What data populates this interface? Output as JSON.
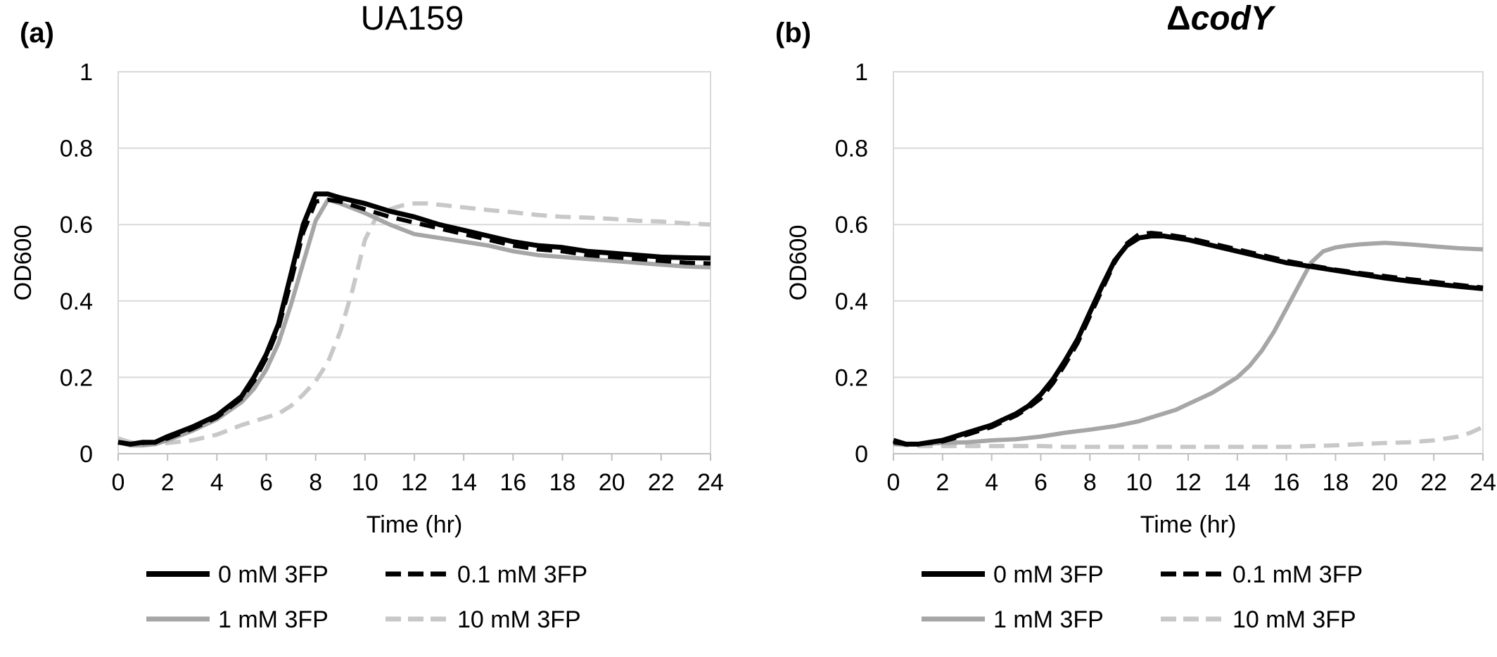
{
  "panels": [
    {
      "letter": "(a)",
      "title": "UA159",
      "title_italic": false
    },
    {
      "letter": "(b)",
      "title_prefix": "Δ",
      "title": "codY",
      "title_italic": true
    }
  ],
  "chart_data": [
    {
      "type": "line",
      "title": "UA159",
      "xlabel": "Time (hr)",
      "ylabel": "OD600",
      "xlim": [
        0,
        24
      ],
      "ylim": [
        0,
        1
      ],
      "xticks": [
        "0",
        "2",
        "4",
        "6",
        "8",
        "10",
        "12",
        "14",
        "16",
        "18",
        "20",
        "22",
        "24"
      ],
      "yticks": [
        "0",
        "0.2",
        "0.4",
        "0.6",
        "0.8",
        "1"
      ],
      "grid": true,
      "legend_position": "bottom",
      "series": [
        {
          "name": "0 mM 3FP",
          "color": "#000000",
          "dash": "solid",
          "x": [
            0,
            0.5,
            1,
            1.5,
            2,
            3,
            4,
            5,
            5.5,
            6,
            6.5,
            7,
            7.5,
            8,
            8.5,
            9,
            10,
            11,
            12,
            13,
            14,
            15,
            16,
            17,
            18,
            19,
            20,
            21,
            22,
            23,
            24
          ],
          "y": [
            0.03,
            0.025,
            0.03,
            0.03,
            0.045,
            0.07,
            0.1,
            0.15,
            0.2,
            0.26,
            0.34,
            0.47,
            0.6,
            0.68,
            0.68,
            0.67,
            0.655,
            0.635,
            0.62,
            0.6,
            0.585,
            0.57,
            0.555,
            0.545,
            0.54,
            0.53,
            0.525,
            0.52,
            0.515,
            0.513,
            0.512
          ]
        },
        {
          "name": "0.1 mM 3FP",
          "color": "#000000",
          "dash": "dashed",
          "x": [
            0,
            0.5,
            1,
            1.5,
            2,
            3,
            4,
            5,
            5.5,
            6,
            6.5,
            7,
            7.5,
            8,
            8.5,
            9,
            10,
            11,
            12,
            13,
            14,
            15,
            16,
            17,
            18,
            19,
            20,
            21,
            22,
            23,
            24
          ],
          "y": [
            0.03,
            0.025,
            0.028,
            0.03,
            0.04,
            0.065,
            0.095,
            0.145,
            0.19,
            0.25,
            0.33,
            0.45,
            0.58,
            0.66,
            0.665,
            0.66,
            0.64,
            0.62,
            0.605,
            0.59,
            0.575,
            0.56,
            0.545,
            0.535,
            0.53,
            0.52,
            0.515,
            0.51,
            0.505,
            0.5,
            0.498
          ]
        },
        {
          "name": "1 mM 3FP",
          "color": "#a6a6a6",
          "dash": "solid",
          "x": [
            0,
            0.5,
            1,
            1.5,
            2,
            3,
            4,
            5,
            5.5,
            6,
            6.5,
            7,
            7.5,
            8,
            8.5,
            9,
            10,
            11,
            12,
            13,
            14,
            15,
            16,
            17,
            18,
            19,
            20,
            21,
            22,
            23,
            24
          ],
          "y": [
            0.03,
            0.022,
            0.022,
            0.025,
            0.035,
            0.06,
            0.09,
            0.135,
            0.17,
            0.22,
            0.29,
            0.39,
            0.5,
            0.61,
            0.665,
            0.655,
            0.63,
            0.6,
            0.575,
            0.565,
            0.555,
            0.545,
            0.53,
            0.52,
            0.515,
            0.51,
            0.505,
            0.5,
            0.495,
            0.49,
            0.488
          ]
        },
        {
          "name": "10 mM 3FP",
          "color": "#c8c8c8",
          "dash": "dashed",
          "x": [
            0,
            0.5,
            1,
            1.5,
            2,
            3,
            4,
            5,
            6,
            6.5,
            7,
            7.5,
            8,
            8.5,
            9,
            9.5,
            10,
            10.5,
            11,
            11.5,
            12,
            12.5,
            13,
            14,
            15,
            16,
            17,
            18,
            19,
            20,
            21,
            22,
            23,
            24
          ],
          "y": [
            0.04,
            0.03,
            0.025,
            0.025,
            0.028,
            0.035,
            0.05,
            0.075,
            0.095,
            0.105,
            0.125,
            0.155,
            0.19,
            0.24,
            0.32,
            0.43,
            0.56,
            0.625,
            0.64,
            0.65,
            0.655,
            0.655,
            0.652,
            0.645,
            0.638,
            0.632,
            0.625,
            0.62,
            0.618,
            0.615,
            0.61,
            0.608,
            0.603,
            0.6
          ]
        }
      ]
    },
    {
      "type": "line",
      "title": "ΔcodY",
      "xlabel": "Time (hr)",
      "ylabel": "OD600",
      "xlim": [
        0,
        24
      ],
      "ylim": [
        0,
        1
      ],
      "xticks": [
        "0",
        "2",
        "4",
        "6",
        "8",
        "10",
        "12",
        "14",
        "16",
        "18",
        "20",
        "22",
        "24"
      ],
      "yticks": [
        "0",
        "0.2",
        "0.4",
        "0.6",
        "0.8",
        "1"
      ],
      "grid": true,
      "legend_position": "bottom",
      "series": [
        {
          "name": "0 mM 3FP",
          "color": "#000000",
          "dash": "solid",
          "x": [
            0,
            0.5,
            1,
            2,
            3,
            4,
            4.5,
            5,
            5.5,
            6,
            6.5,
            7,
            7.5,
            8,
            8.5,
            9,
            9.5,
            10,
            10.5,
            11,
            12,
            13,
            14,
            15,
            16,
            17,
            18,
            19,
            20,
            21,
            22,
            23,
            24
          ],
          "y": [
            0.035,
            0.025,
            0.025,
            0.035,
            0.055,
            0.075,
            0.09,
            0.105,
            0.125,
            0.155,
            0.195,
            0.245,
            0.3,
            0.37,
            0.44,
            0.505,
            0.545,
            0.565,
            0.57,
            0.57,
            0.56,
            0.545,
            0.53,
            0.515,
            0.5,
            0.49,
            0.48,
            0.47,
            0.46,
            0.452,
            0.445,
            0.438,
            0.432
          ]
        },
        {
          "name": "0.1 mM 3FP",
          "color": "#000000",
          "dash": "dashed",
          "x": [
            0,
            0.5,
            1,
            2,
            3,
            4,
            4.5,
            5,
            5.5,
            6,
            6.5,
            7,
            7.5,
            8,
            8.5,
            9,
            9.5,
            10,
            10.5,
            11,
            12,
            13,
            14,
            15,
            16,
            17,
            18,
            19,
            20,
            21,
            22,
            23,
            24
          ],
          "y": [
            0.03,
            0.025,
            0.025,
            0.032,
            0.05,
            0.07,
            0.085,
            0.1,
            0.12,
            0.145,
            0.185,
            0.235,
            0.29,
            0.36,
            0.43,
            0.5,
            0.55,
            0.575,
            0.578,
            0.575,
            0.565,
            0.55,
            0.535,
            0.52,
            0.505,
            0.493,
            0.482,
            0.473,
            0.465,
            0.457,
            0.45,
            0.442,
            0.435
          ]
        },
        {
          "name": "1 mM 3FP",
          "color": "#a6a6a6",
          "dash": "solid",
          "x": [
            0,
            1,
            2,
            3,
            4,
            5,
            6,
            7,
            8,
            9,
            10,
            10.5,
            11,
            11.5,
            12,
            12.5,
            13,
            13.5,
            14,
            14.5,
            15,
            15.5,
            16,
            16.5,
            17,
            17.5,
            18,
            18.5,
            19,
            19.5,
            20,
            20.5,
            21,
            22,
            23,
            24
          ],
          "y": [
            0.025,
            0.025,
            0.028,
            0.03,
            0.035,
            0.038,
            0.045,
            0.055,
            0.063,
            0.072,
            0.085,
            0.095,
            0.105,
            0.115,
            0.13,
            0.145,
            0.16,
            0.18,
            0.2,
            0.23,
            0.27,
            0.32,
            0.38,
            0.44,
            0.5,
            0.53,
            0.54,
            0.545,
            0.548,
            0.55,
            0.552,
            0.55,
            0.548,
            0.543,
            0.538,
            0.535
          ]
        },
        {
          "name": "10 mM 3FP",
          "color": "#c8c8c8",
          "dash": "dashed",
          "x": [
            0,
            1,
            2,
            3,
            4,
            5,
            6,
            7,
            8,
            9,
            10,
            11,
            12,
            13,
            14,
            15,
            16,
            17,
            18,
            19,
            20,
            21,
            22,
            22.5,
            23,
            23.5,
            24
          ],
          "y": [
            0.025,
            0.02,
            0.02,
            0.02,
            0.02,
            0.02,
            0.02,
            0.018,
            0.018,
            0.018,
            0.018,
            0.018,
            0.018,
            0.018,
            0.018,
            0.018,
            0.018,
            0.02,
            0.022,
            0.025,
            0.028,
            0.03,
            0.035,
            0.04,
            0.045,
            0.055,
            0.07
          ]
        }
      ]
    }
  ]
}
